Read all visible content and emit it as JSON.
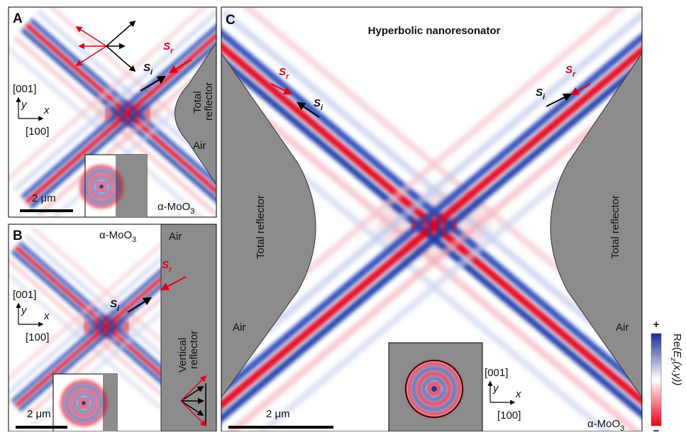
{
  "panel_a": {
    "label": "A",
    "s_i": {
      "main": "S",
      "sub": "i"
    },
    "s_r": {
      "main": "S",
      "sub": "r"
    },
    "axis_y_direction": "[001]",
    "axis_y": "y",
    "axis_x": "x",
    "axis_x_direction": "[100]",
    "reflector": [
      "Total",
      "reflector"
    ],
    "air": "Air",
    "scale": "2 μm",
    "material": {
      "main": "α-MoO",
      "sub": "3"
    }
  },
  "panel_b": {
    "label": "B",
    "s_i": {
      "main": "S",
      "sub": "i"
    },
    "s_r": {
      "main": "S",
      "sub": "r"
    },
    "axis_y_direction": "[001]",
    "axis_y": "y",
    "axis_x": "x",
    "axis_x_direction": "[100]",
    "reflector": [
      "Vertical",
      "reflector"
    ],
    "air": "Air",
    "scale": "2 μm",
    "material": {
      "main": "α-MoO",
      "sub": "3"
    }
  },
  "panel_c": {
    "label": "C",
    "title": "Hyperbolic nanoresonator",
    "s_r_left": {
      "main": "S",
      "sub": "r"
    },
    "s_i_left": {
      "main": "S",
      "sub": "i"
    },
    "s_r_right": {
      "main": "S",
      "sub": "r"
    },
    "s_i_right": {
      "main": "S",
      "sub": "i"
    },
    "reflector_left": "Total reflector",
    "reflector_right": "Total reflector",
    "air_left": "Air",
    "air_right": "Air",
    "axis_y_direction": "[001]",
    "axis_y": "y",
    "axis_x": "x",
    "axis_x_direction": "[100]",
    "scale": "2 μm",
    "material": {
      "main": "α-MoO",
      "sub": "3"
    }
  },
  "colorbar": {
    "max": "+",
    "min": "−",
    "label": {
      "pre": "Re(",
      "main": "E",
      "sub": "z",
      "post": "(x,y))"
    }
  }
}
